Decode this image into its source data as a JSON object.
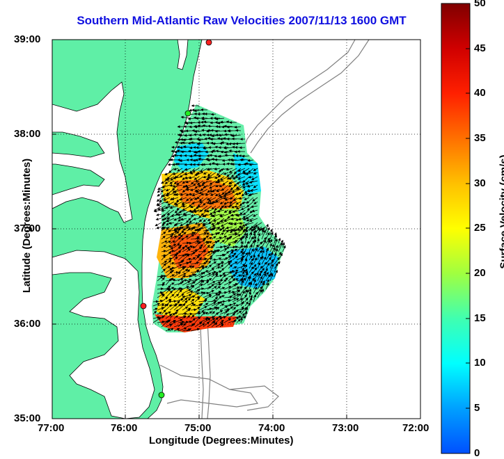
{
  "title": "Southern Mid-Atlantic Raw Velocities 2007/11/13 1600 GMT",
  "x_axis": {
    "label": "Longitude (Degrees:Minutes)",
    "ticks": [
      "77:00",
      "76:00",
      "75:00",
      "74:00",
      "73:00",
      "72:00"
    ]
  },
  "y_axis": {
    "label": "Latitude (Degrees:Minutes)",
    "ticks": [
      "39:00",
      "38:00",
      "37:00",
      "36:00",
      "35:00"
    ]
  },
  "colorbar": {
    "label": "Surface Velocity (cm/s)",
    "ticks": [
      "50",
      "45",
      "40",
      "35",
      "30",
      "25",
      "20",
      "15",
      "10",
      "5",
      "0"
    ],
    "colors": [
      "#0050ff",
      "#00a0ff",
      "#00ffff",
      "#40ffb0",
      "#a0ff40",
      "#ffff00",
      "#ffc000",
      "#ff7000",
      "#ff2000",
      "#d00000",
      "#800000"
    ]
  },
  "map": {
    "land_color": "#5fefa6",
    "water_color": "#ffffff",
    "bathymetry_color": "#808080",
    "stations": [
      "station-north",
      "station-mid",
      "station-south-red",
      "station-south-green"
    ]
  }
}
